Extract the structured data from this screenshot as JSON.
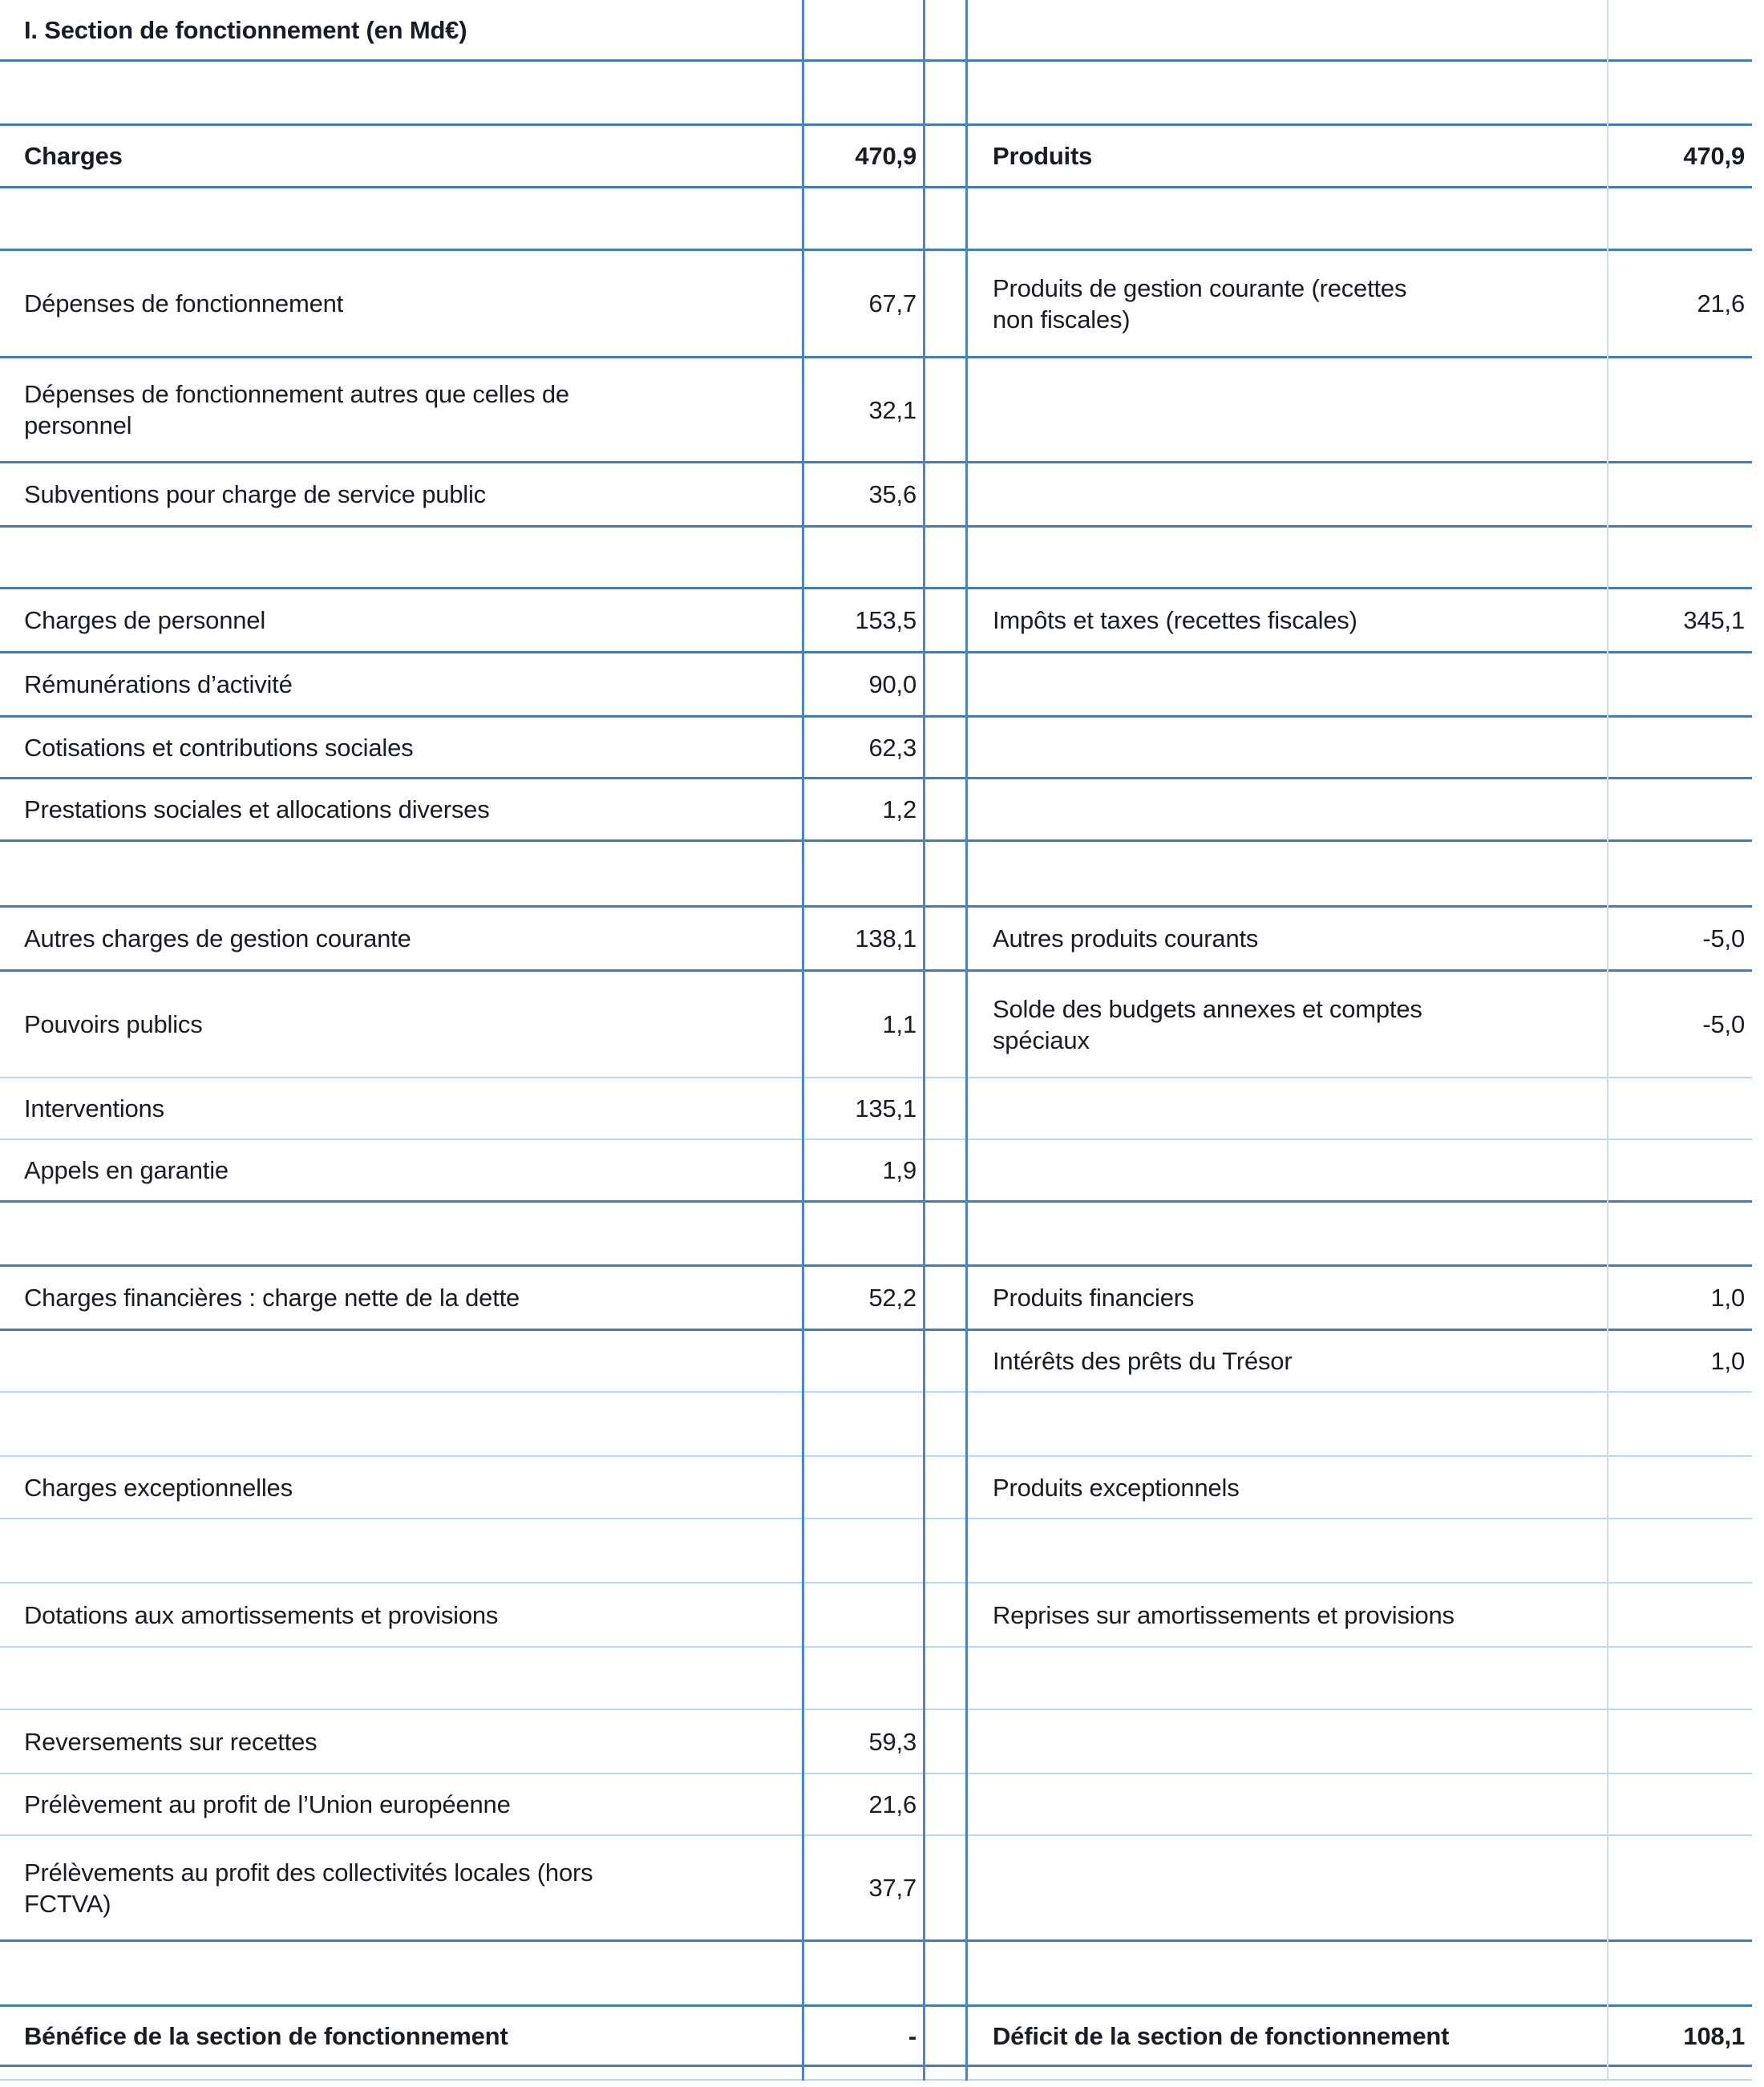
{
  "title": "I. Section de fonctionnement (en Md€)",
  "colors": {
    "grid_dark": "#3f7dbc",
    "grid_light": "#bdd7ee",
    "grid_vertical_light": "#c9dcf0",
    "text": "#1b1b24",
    "background": "#ffffff"
  },
  "table": {
    "left_section_header": "Charges",
    "right_section_header": "Produits",
    "rows": [
      {
        "h": 80,
        "b": "dark",
        "bold": false,
        "ll": "",
        "lv": "",
        "rl": "",
        "rv": ""
      },
      {
        "h": 78,
        "b": "dark",
        "bold": true,
        "ll": "Charges",
        "lv": "470,9",
        "rl": "Produits",
        "rv": "470,9"
      },
      {
        "h": 78,
        "b": "dark",
        "bold": false,
        "ll": "",
        "lv": "",
        "rl": "",
        "rv": ""
      },
      {
        "h": 134,
        "b": "dark",
        "bold": false,
        "ll": "Dépenses de fonctionnement",
        "lv": "67,7",
        "rl": "Produits de gestion courante (recettes\nnon fiscales)",
        "rv": "21,6"
      },
      {
        "h": 131,
        "b": "dark",
        "bold": false,
        "ll": "Dépenses de fonctionnement autres que celles de\npersonnel",
        "lv": "32,1",
        "rl": "",
        "rv": ""
      },
      {
        "h": 80,
        "b": "dark",
        "bold": false,
        "ll": "Subventions pour charge de service public",
        "lv": "35,6",
        "rl": "",
        "rv": ""
      },
      {
        "h": 77,
        "b": "dark",
        "bold": false,
        "ll": "",
        "lv": "",
        "rl": "",
        "rv": ""
      },
      {
        "h": 80,
        "b": "dark",
        "bold": false,
        "ll": "Charges de personnel",
        "lv": "153,5",
        "rl": "Impôts et taxes (recettes fiscales)",
        "rv": "345,1"
      },
      {
        "h": 80,
        "b": "dark",
        "bold": false,
        "ll": "Rémunérations d’activité",
        "lv": "90,0",
        "rl": "",
        "rv": ""
      },
      {
        "h": 77,
        "b": "dark",
        "bold": false,
        "ll": "Cotisations et contributions sociales",
        "lv": "62,3",
        "rl": "",
        "rv": ""
      },
      {
        "h": 78,
        "b": "dark",
        "bold": false,
        "ll": "Prestations sociales et allocations diverses",
        "lv": "1,2",
        "rl": "",
        "rv": ""
      },
      {
        "h": 82,
        "b": "dark",
        "bold": false,
        "ll": "",
        "lv": "",
        "rl": "",
        "rv": ""
      },
      {
        "h": 80,
        "b": "dark",
        "bold": false,
        "ll": "Autres charges de gestion courante",
        "lv": "138,1",
        "rl": "Autres produits courants",
        "rv": "-5,0"
      },
      {
        "h": 133,
        "b": "light",
        "bold": false,
        "ll": "Pouvoirs publics",
        "lv": "1,1",
        "rl": "Solde des budgets annexes et comptes\nspéciaux",
        "rv": "-5,0"
      },
      {
        "h": 77,
        "b": "light",
        "bold": false,
        "ll": "Interventions",
        "lv": "135,1",
        "rl": "",
        "rv": ""
      },
      {
        "h": 78,
        "b": "dark",
        "bold": false,
        "ll": "Appels en garantie",
        "lv": "1,9",
        "rl": "",
        "rv": ""
      },
      {
        "h": 80,
        "b": "dark",
        "bold": false,
        "ll": "",
        "lv": "",
        "rl": "",
        "rv": ""
      },
      {
        "h": 80,
        "b": "dark",
        "bold": false,
        "ll": "Charges financières : charge nette de la dette",
        "lv": "52,2",
        "rl": "Produits financiers",
        "rv": "1,0"
      },
      {
        "h": 77,
        "b": "light",
        "bold": false,
        "ll": "",
        "lv": "",
        "rl": "Intérêts des prêts du Trésor",
        "rv": "1,0"
      },
      {
        "h": 80,
        "b": "light",
        "bold": false,
        "ll": "",
        "lv": "",
        "rl": "",
        "rv": ""
      },
      {
        "h": 78,
        "b": "light",
        "bold": false,
        "ll": "Charges exceptionnelles",
        "lv": "",
        "rl": "Produits exceptionnels",
        "rv": ""
      },
      {
        "h": 80,
        "b": "light",
        "bold": false,
        "ll": "",
        "lv": "",
        "rl": "",
        "rv": ""
      },
      {
        "h": 80,
        "b": "light",
        "bold": false,
        "ll": "Dotations aux amortissements et provisions",
        "lv": "",
        "rl": "Reprises sur amortissements et provisions",
        "rv": ""
      },
      {
        "h": 78,
        "b": "light",
        "bold": false,
        "ll": "",
        "lv": "",
        "rl": "",
        "rv": ""
      },
      {
        "h": 80,
        "b": "light",
        "bold": false,
        "ll": "Reversements sur recettes",
        "lv": "59,3",
        "rl": "",
        "rv": ""
      },
      {
        "h": 77,
        "b": "light",
        "bold": false,
        "ll": "Prélèvement au profit de l’Union européenne",
        "lv": "21,6",
        "rl": "",
        "rv": ""
      },
      {
        "h": 132,
        "b": "dark",
        "bold": false,
        "ll": "Prélèvements au profit des collectivités locales (hors\nFCTVA)",
        "lv": "37,7",
        "rl": "",
        "rv": ""
      },
      {
        "h": 81,
        "b": "dark",
        "bold": false,
        "ll": "",
        "lv": "",
        "rl": "",
        "rv": ""
      },
      {
        "h": 75,
        "b": "dark",
        "bold": true,
        "ll": "Bénéfice de la section de fonctionnement",
        "lv": "-",
        "rl": "Déficit de la section de fonctionnement",
        "rv": "108,1"
      },
      {
        "h": 17,
        "b": "light",
        "bold": false,
        "ll": "",
        "lv": "",
        "rl": "",
        "rv": ""
      }
    ]
  }
}
